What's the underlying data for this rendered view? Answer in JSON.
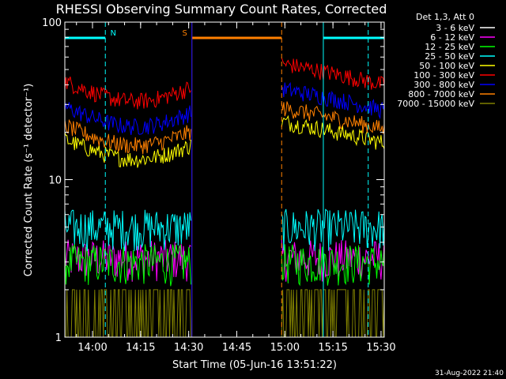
{
  "chart_data": {
    "type": "line",
    "title": "RHESSI Observing Summary Count Rates, Corrected",
    "xlabel": "Start Time (05-Jun-16 13:51:22)",
    "ylabel": "Corrected Count Rate (s⁻¹ detector⁻¹)",
    "y_scale": "log",
    "ylim": [
      1,
      100
    ],
    "xlim": [
      "13:51:22",
      "15:31:00"
    ],
    "x_ticks": [
      "14:00",
      "14:15",
      "14:30",
      "14:45",
      "15:00",
      "15:15",
      "15:30"
    ],
    "y_ticks": [
      "1",
      "10",
      "100"
    ],
    "legend_title": "Det 1,3, Att 0",
    "legend_placement": "right",
    "footer": "31-Aug-2022 21:40",
    "data_gap": [
      "14:31:00",
      "14:59:00"
    ],
    "series": [
      {
        "name": "3 - 6 keV",
        "color": "#ffffff",
        "level": null
      },
      {
        "name": "6 - 12 keV",
        "color": "#ff00ff",
        "level": 3.2
      },
      {
        "name": "12 - 25 keV",
        "color": "#00ff00",
        "level": 3.0
      },
      {
        "name": "25 - 50 keV",
        "color": "#00ffff",
        "level": 5.0
      },
      {
        "name": "50 - 100 keV",
        "color": "#ffff00",
        "level": 18
      },
      {
        "name": "100 - 300 keV",
        "color": "#ff0000",
        "level": 42
      },
      {
        "name": "300 - 800 keV",
        "color": "#0000ff",
        "level": 29
      },
      {
        "name": "800 - 7000 keV",
        "color": "#ff8000",
        "level": 22
      },
      {
        "name": "7000 - 15000 keV",
        "color": "#808000",
        "level": 1.3
      }
    ],
    "flags": [
      {
        "label": "N",
        "color": "#00ffff",
        "start": "13:51:22",
        "end": "14:04:00"
      },
      {
        "label": "",
        "color": "#00ffff",
        "start": "15:12:00",
        "end": "15:31:00"
      },
      {
        "label": "S",
        "color": "#ff8000",
        "start": "14:31:00",
        "end": "14:59:00"
      }
    ]
  }
}
